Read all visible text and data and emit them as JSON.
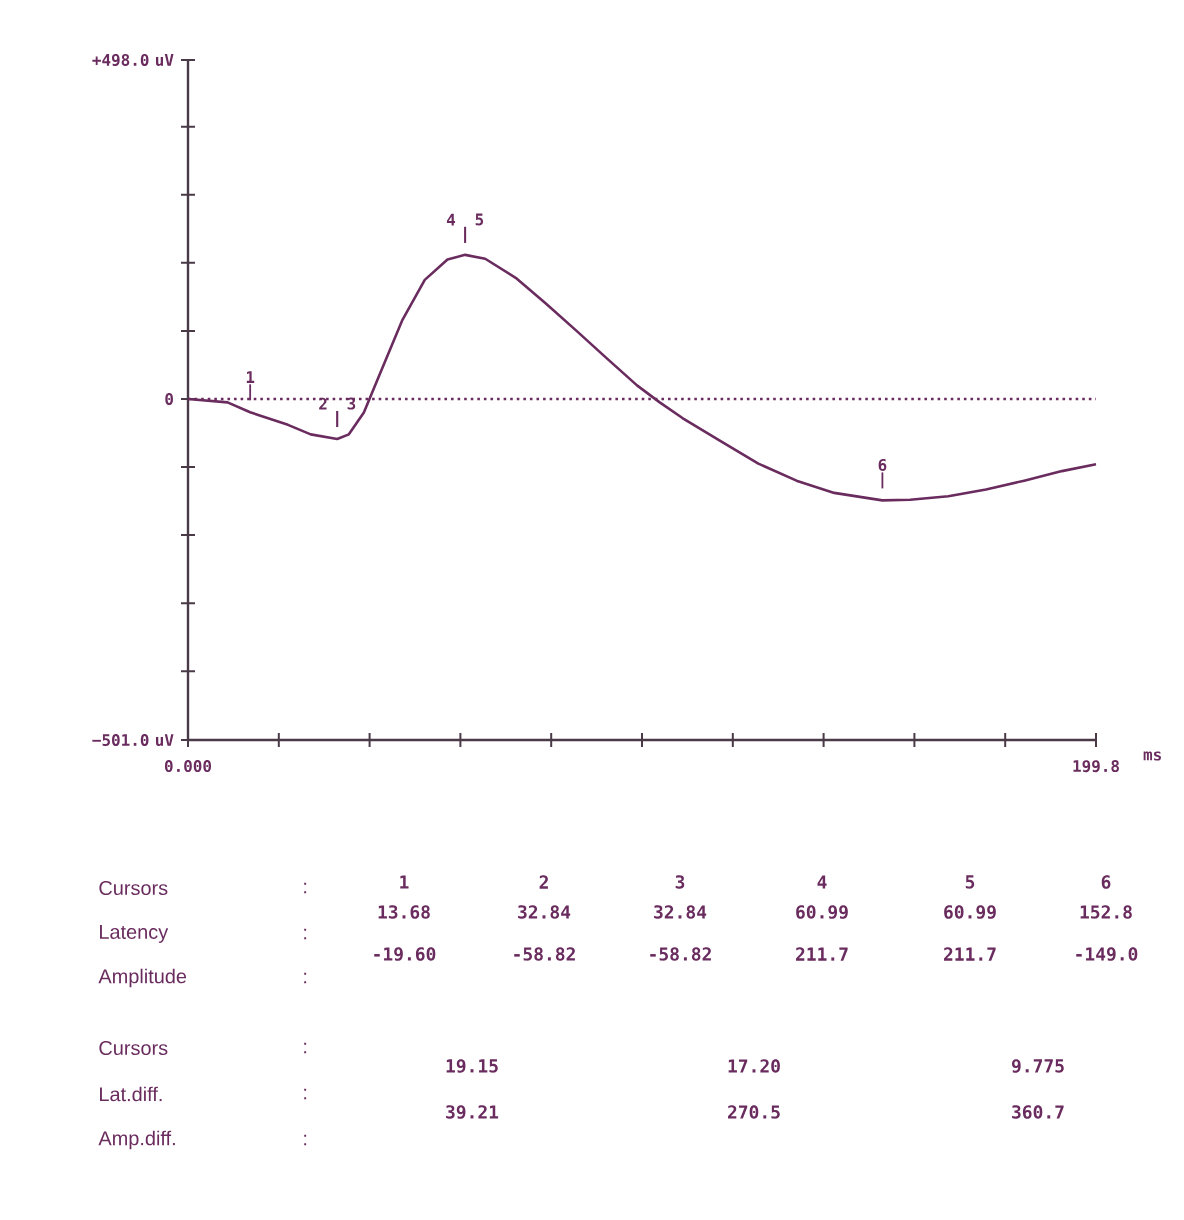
{
  "chart_data": {
    "type": "line",
    "xlabel": "ms",
    "color": "#6a2c5e",
    "line_style": "solid",
    "marker": "none",
    "x": [
      0,
      8.7,
      13.68,
      22,
      27,
      32.84,
      35.4,
      38.7,
      42.1,
      47.1,
      52.1,
      57.1,
      60.99,
      65.4,
      72.1,
      78.8,
      85.5,
      92.1,
      98.8,
      103.8,
      108.8,
      117.2,
      125.5,
      133.9,
      142.2,
      152.8,
      158.9,
      167.3,
      175.6,
      184,
      192.3,
      199.8
    ],
    "values": [
      0,
      -5,
      -19.6,
      -38,
      -52,
      -58.82,
      -52,
      -20,
      35,
      115,
      175,
      205,
      211.7,
      206,
      178,
      140,
      100,
      60,
      20,
      -5,
      -28,
      -62,
      -95,
      -120,
      -138,
      -149,
      -148,
      -143,
      -133,
      -120,
      -106,
      -96
    ],
    "xlim": [
      0,
      199.8
    ],
    "xticks": [
      {
        "value": 0,
        "label": "0.000"
      },
      {
        "value": 19.98,
        "label": null
      },
      {
        "value": 39.96,
        "label": null
      },
      {
        "value": 59.94,
        "label": null
      },
      {
        "value": 79.92,
        "label": null
      },
      {
        "value": 99.9,
        "label": null
      },
      {
        "value": 119.88,
        "label": null
      },
      {
        "value": 139.86,
        "label": null
      },
      {
        "value": 159.84,
        "label": null
      },
      {
        "value": 179.82,
        "label": null
      },
      {
        "value": 199.8,
        "label": "199.8"
      }
    ],
    "ylim": [
      -501,
      498
    ],
    "yticks": [
      {
        "value": -501,
        "label": "−501.0 uV"
      },
      {
        "value": -400,
        "label": null
      },
      {
        "value": -300,
        "label": null
      },
      {
        "value": -200,
        "label": null
      },
      {
        "value": -100,
        "label": null
      },
      {
        "value": 0,
        "label": "0"
      },
      {
        "value": 100,
        "label": null
      },
      {
        "value": 200,
        "label": null
      },
      {
        "value": 300,
        "label": null
      },
      {
        "value": 400,
        "label": null
      },
      {
        "value": 498,
        "label": "+498.0 uV"
      }
    ],
    "ref_lines": [
      {
        "axis": "y",
        "value": 0,
        "line_style": "dotted"
      }
    ],
    "annotations": [
      {
        "text": "1",
        "x": 13.68,
        "y": -19.6
      },
      {
        "text": "2",
        "x": 32.84,
        "y": -58.82
      },
      {
        "text": "3",
        "x": 32.84,
        "y": -58.82
      },
      {
        "text": "4",
        "x": 60.99,
        "y": 211.7
      },
      {
        "text": "5",
        "x": 60.99,
        "y": 211.7
      },
      {
        "text": "6",
        "x": 152.8,
        "y": -149.0
      },
      "Cursors",
      ":",
      "Latency",
      ":",
      "Amplitude",
      ":",
      "1",
      "2",
      "3",
      "4",
      "5",
      "6",
      "13.68",
      "32.84",
      "32.84",
      "60.99",
      "60.99",
      "152.8",
      "-19.60",
      "-58.82",
      "-58.82",
      "211.7",
      "211.7",
      "-149.0",
      "Cursors",
      ":",
      "Lat.diff.",
      ":",
      "Amp.diff.",
      ":",
      "19.15",
      "17.20",
      "9.775",
      "39.21",
      "270.5",
      "360.7"
    ]
  }
}
